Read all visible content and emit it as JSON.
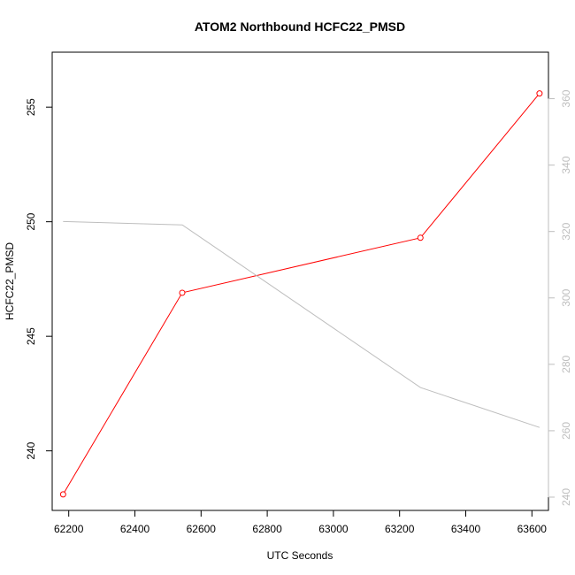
{
  "chart_data": {
    "type": "line",
    "title": "ATOM2 Northbound HCFC22_PMSD",
    "xlabel": "UTC Seconds",
    "ylabel": "HCFC22_PMSD",
    "xlim": [
      62150,
      63650
    ],
    "ylim": [
      237.4,
      257.4
    ],
    "y2lim": [
      236,
      374
    ],
    "x_ticks": [
      62200,
      62400,
      62600,
      62800,
      63000,
      63200,
      63400,
      63600
    ],
    "y_ticks": [
      240,
      245,
      250,
      255
    ],
    "y2_ticks": [
      240,
      260,
      280,
      300,
      320,
      340,
      360
    ],
    "grid": false,
    "series": [
      {
        "axis": "left",
        "color": "#ff0000",
        "markers": true,
        "x": [
          62183,
          62543,
          63263,
          63623
        ],
        "y": [
          238.1,
          246.9,
          249.3,
          255.6
        ]
      },
      {
        "axis": "right",
        "color": "#bebebe",
        "markers": false,
        "x": [
          62183,
          62543,
          63263,
          63623
        ],
        "y": [
          323,
          322,
          273,
          261
        ]
      }
    ]
  }
}
